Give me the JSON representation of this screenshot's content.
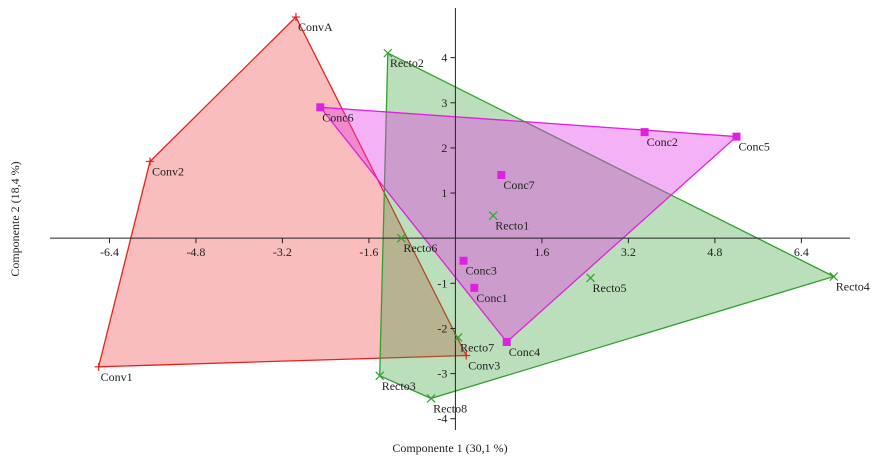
{
  "chart_data": {
    "type": "scatter",
    "xlabel": "Componente 1 (30,1 %)",
    "ylabel": "Componente 2 (18,4 %)",
    "xlim": [
      -7.5,
      7.3
    ],
    "ylim": [
      -4.25,
      5.1
    ],
    "grid": false,
    "x_ticks": [
      {
        "value": -6.4,
        "label": "-6.4"
      },
      {
        "value": -4.8,
        "label": "-4.8"
      },
      {
        "value": -3.2,
        "label": "-3.2"
      },
      {
        "value": -1.6,
        "label": "-1.6"
      },
      {
        "value": 1.6,
        "label": "1.6"
      },
      {
        "value": 3.2,
        "label": "3.2"
      },
      {
        "value": 4.8,
        "label": "4.8"
      },
      {
        "value": 6.4,
        "label": "6.4"
      }
    ],
    "y_ticks": [
      {
        "value": 4,
        "label": "4"
      },
      {
        "value": 3,
        "label": "3"
      },
      {
        "value": 2,
        "label": "2"
      },
      {
        "value": 1,
        "label": "1"
      },
      {
        "value": -1,
        "label": "-1"
      },
      {
        "value": -2,
        "label": "-2"
      },
      {
        "value": -3,
        "label": "-3"
      },
      {
        "value": -4,
        "label": "-4"
      }
    ],
    "series": [
      {
        "key": "conv",
        "color": "#e82020",
        "fill": "rgba(240,90,90,0.40)",
        "marker": "plus",
        "hull": [
          "ConvA",
          "Conv3",
          "Conv1",
          "Conv2"
        ],
        "points": [
          {
            "label": "ConvA",
            "x": -2.95,
            "y": 4.9
          },
          {
            "label": "Conv2",
            "x": -5.65,
            "y": 1.7
          },
          {
            "label": "Conv1",
            "x": -6.6,
            "y": -2.85
          },
          {
            "label": "Conv3",
            "x": 0.2,
            "y": -2.6
          }
        ]
      },
      {
        "key": "recto",
        "color": "#30a030",
        "fill": "rgba(60,160,60,0.35)",
        "marker": "x",
        "hull": [
          "Recto2",
          "Recto4",
          "Recto8",
          "Recto3"
        ],
        "points": [
          {
            "label": "Recto2",
            "x": -1.25,
            "y": 4.1
          },
          {
            "label": "Recto1",
            "x": 0.7,
            "y": 0.5
          },
          {
            "label": "Recto6",
            "x": -1.0,
            "y": 0.0
          },
          {
            "label": "Recto5",
            "x": 2.5,
            "y": -0.88
          },
          {
            "label": "Recto4",
            "x": 7.0,
            "y": -0.85
          },
          {
            "label": "Recto7",
            "x": 0.05,
            "y": -2.2
          },
          {
            "label": "Recto3",
            "x": -1.4,
            "y": -3.05
          },
          {
            "label": "Recto8",
            "x": -0.45,
            "y": -3.55
          }
        ]
      },
      {
        "key": "conc",
        "color": "#e020e0",
        "fill": "rgba(230,60,230,0.40)",
        "marker": "square",
        "hull": [
          "Conc6",
          "Conc5",
          "Conc4"
        ],
        "points": [
          {
            "label": "Conc6",
            "x": -2.5,
            "y": 2.9
          },
          {
            "label": "Conc2",
            "x": 3.5,
            "y": 2.35
          },
          {
            "label": "Conc5",
            "x": 5.2,
            "y": 2.25
          },
          {
            "label": "Conc7",
            "x": 0.85,
            "y": 1.4
          },
          {
            "label": "Conc3",
            "x": 0.15,
            "y": -0.5
          },
          {
            "label": "Conc1",
            "x": 0.35,
            "y": -1.1
          },
          {
            "label": "Conc4",
            "x": 0.95,
            "y": -2.3
          }
        ]
      }
    ]
  }
}
